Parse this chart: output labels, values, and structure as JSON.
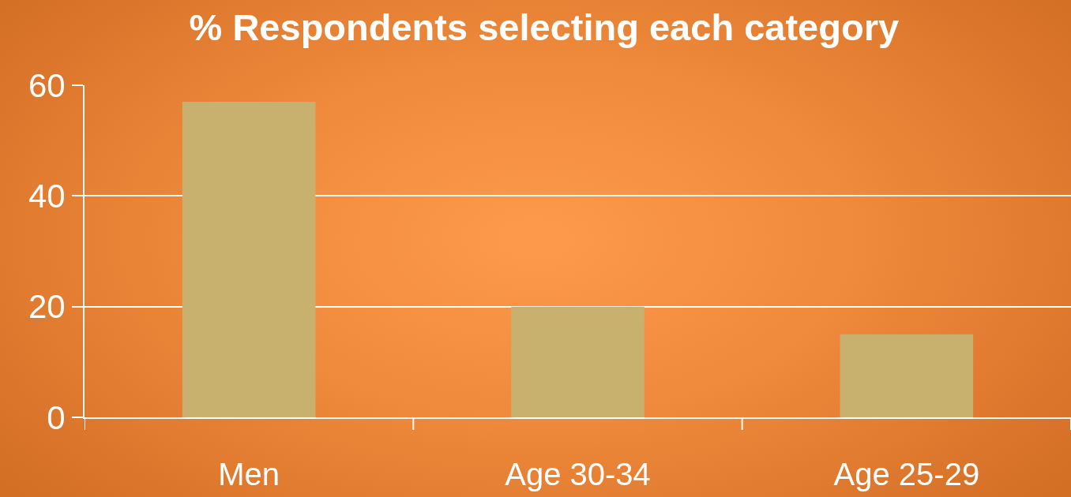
{
  "chart_data": {
    "type": "bar",
    "title": "% Respondents selecting each category",
    "categories": [
      "Men",
      "Age 30-34",
      "Age 25-29"
    ],
    "values": [
      57,
      20,
      15
    ],
    "color": "#c8b06f",
    "ylim": [
      0,
      60
    ],
    "yticks": [
      0,
      20,
      40,
      60
    ],
    "grid": "y"
  }
}
